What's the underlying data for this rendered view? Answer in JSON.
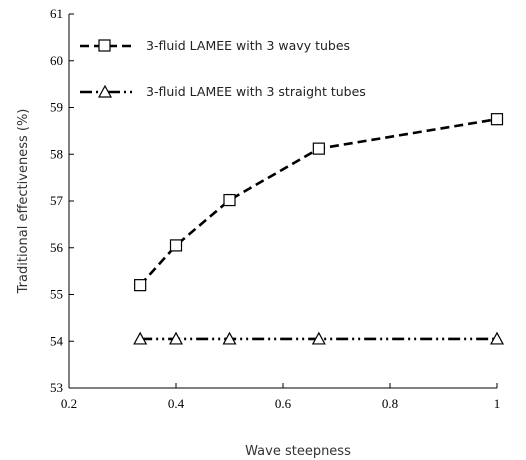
{
  "chart_data": {
    "type": "line",
    "title": "",
    "xlabel": "Wave steepness",
    "ylabel": "Traditional effectiveness (%)",
    "xlim": [
      0.2,
      1.0
    ],
    "ylim": [
      53,
      61
    ],
    "x_ticks": [
      "0.2",
      "0.4",
      "0.6",
      "0.8",
      "1"
    ],
    "y_ticks": [
      "53",
      "54",
      "55",
      "56",
      "57",
      "58",
      "59",
      "60",
      "61"
    ],
    "grid": false,
    "legend_position": "top-left",
    "series": [
      {
        "name": "3-fluid LAMEE with 3 wavy tubes",
        "marker": "square",
        "line_style": "dashed",
        "color": "#000000",
        "x": [
          0.333,
          0.4,
          0.5,
          0.667,
          1.0
        ],
        "y": [
          55.2,
          56.05,
          57.02,
          58.12,
          58.75
        ]
      },
      {
        "name": "3-fluid LAMEE with 3 straight tubes",
        "marker": "triangle",
        "line_style": "dash-dot-dot",
        "color": "#000000",
        "x": [
          0.333,
          0.4,
          0.5,
          0.667,
          1.0
        ],
        "y": [
          54.05,
          54.05,
          54.05,
          54.05,
          54.05
        ]
      }
    ]
  }
}
